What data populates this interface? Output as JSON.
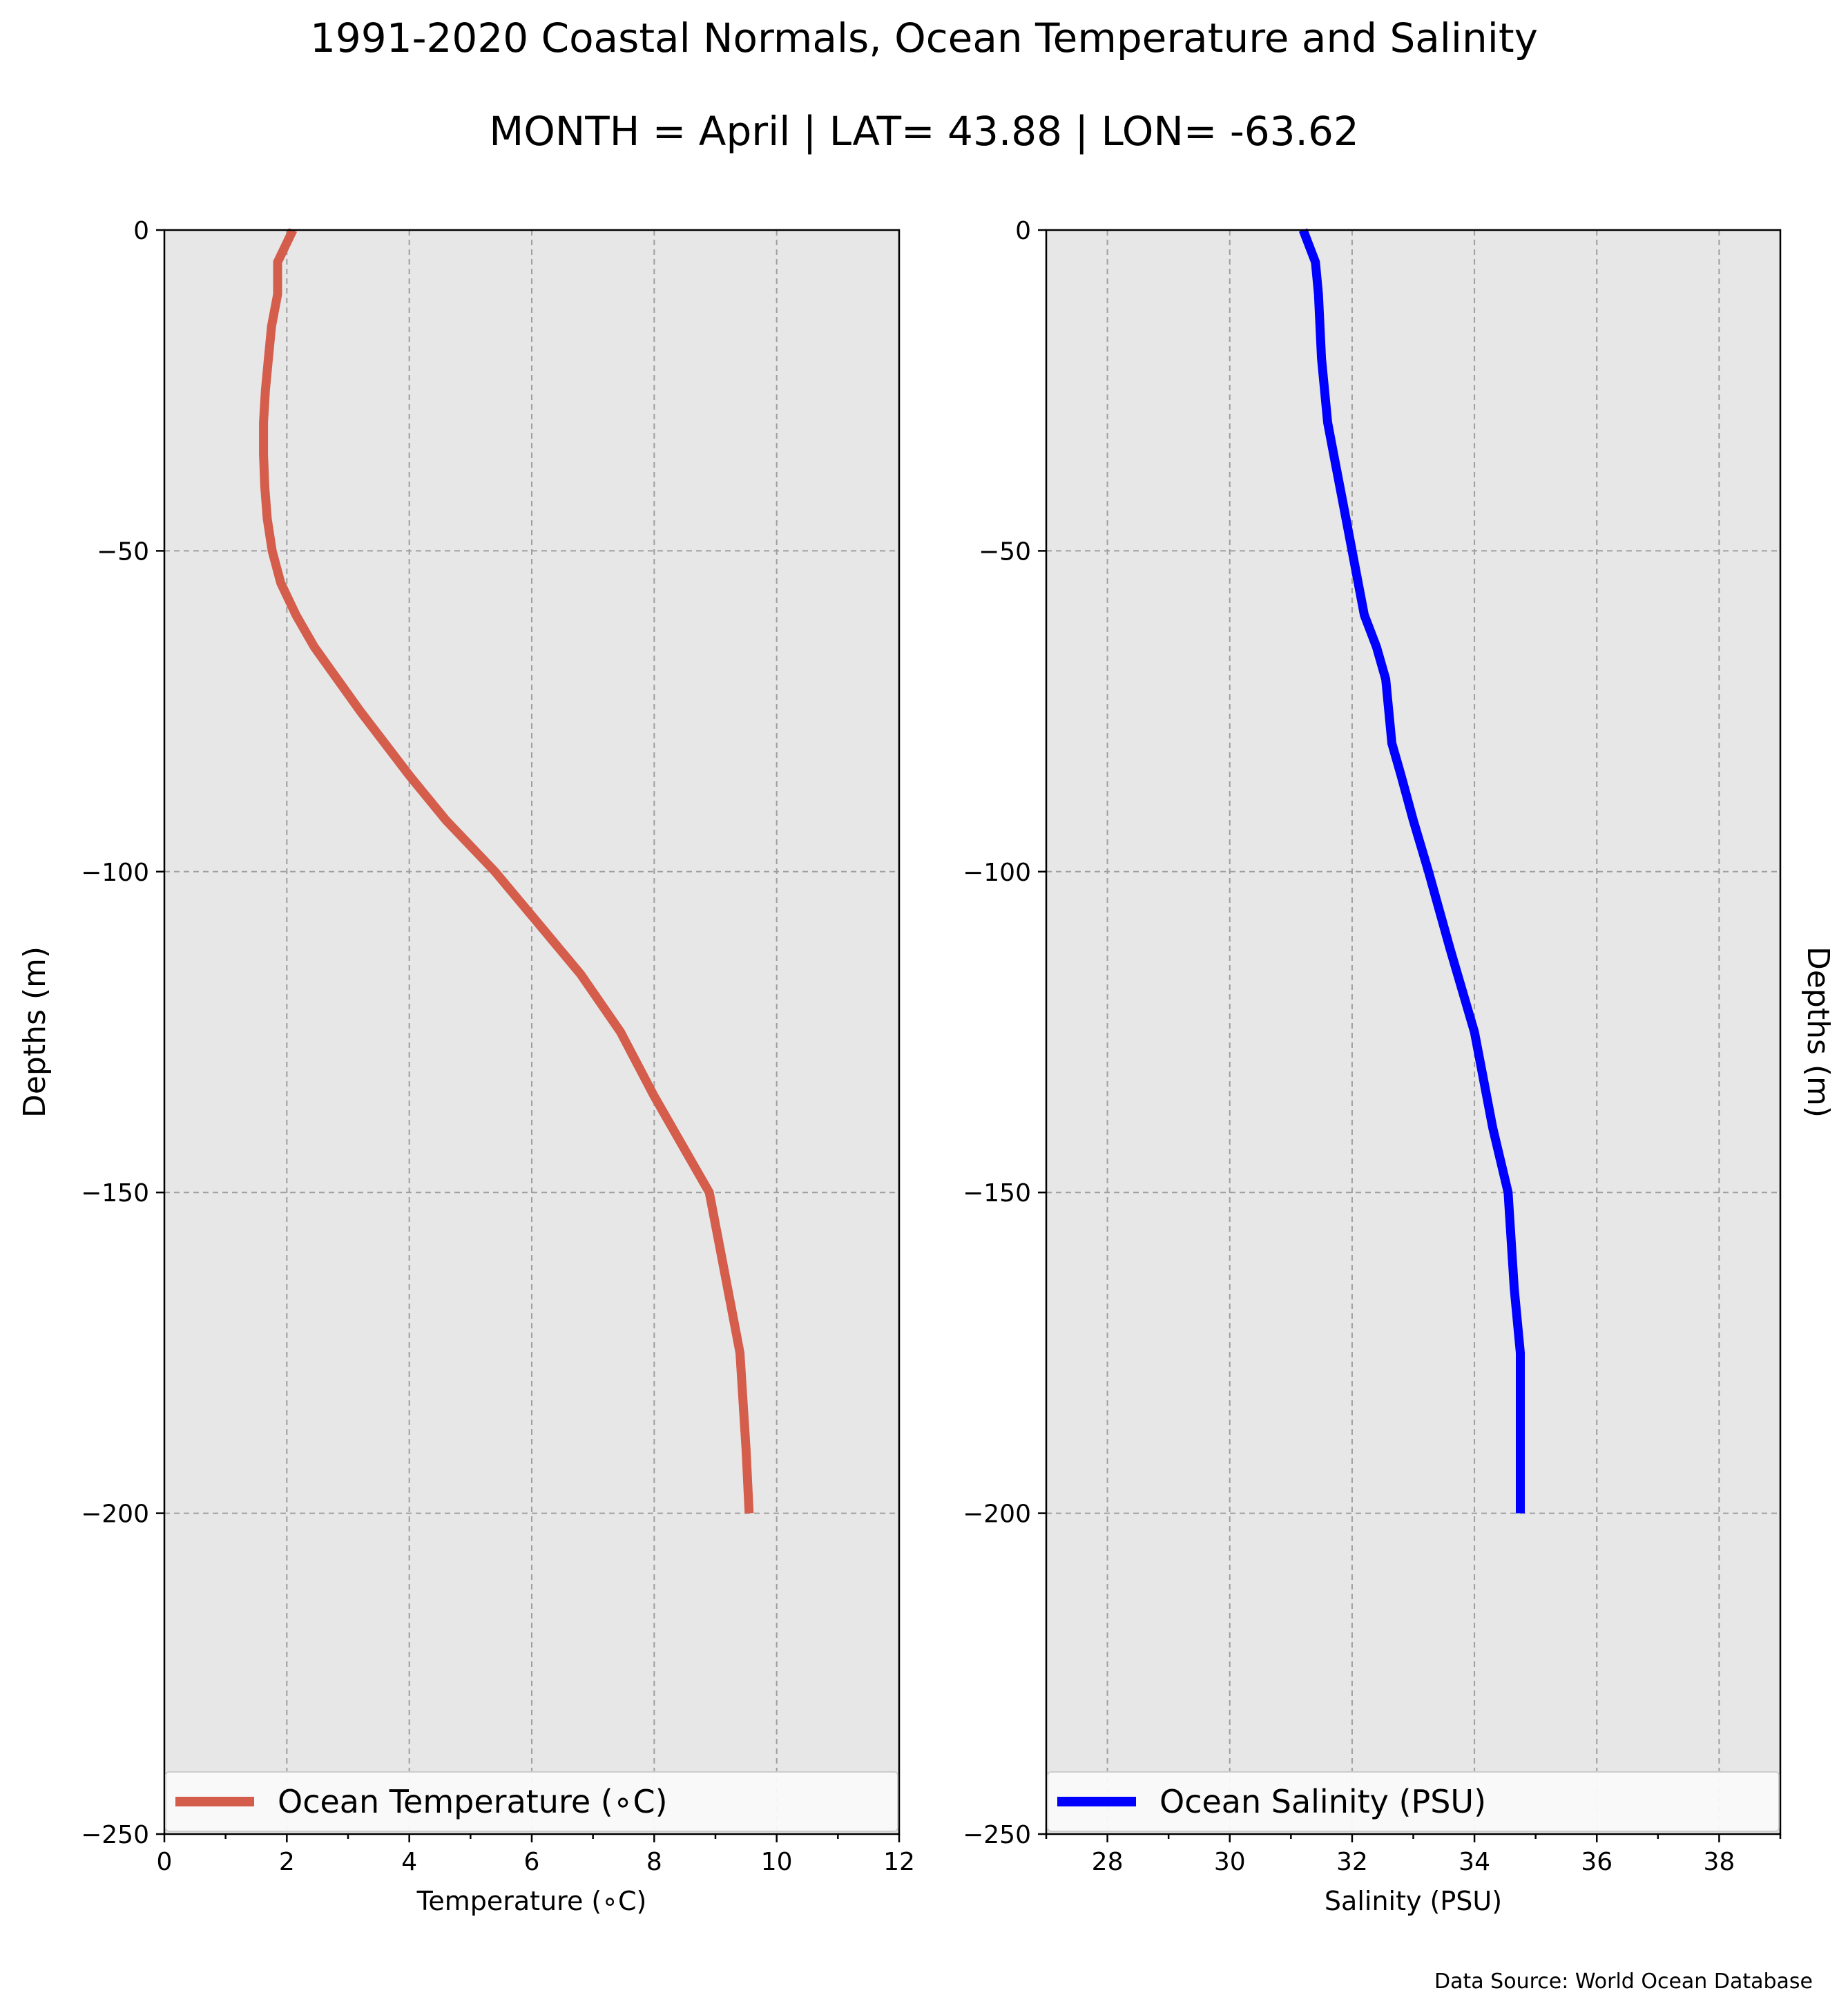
{
  "title": "1991-2020 Coastal Normals, Ocean Temperature and Salinity",
  "subtitle": "MONTH = April | LAT= 43.88 | LON= -63.62",
  "footnote": "Data Source: World Ocean Database",
  "colors": {
    "plot_background": "#e7e7e7",
    "temperature": "#d45d4c",
    "salinity": "#0000ff"
  },
  "chart_data": [
    {
      "type": "line",
      "xlabel": "Temperature ($^\\circ$C)",
      "xlabel_display": "Temperature (∘C)",
      "ylabel": "Depths (m)",
      "xlim": [
        0,
        12
      ],
      "ylim": [
        -250,
        0
      ],
      "x_ticks": [
        0,
        2,
        4,
        6,
        8,
        10,
        12
      ],
      "x_tick_labels": [
        "0",
        "2",
        "4",
        "6",
        "8",
        "10",
        "12"
      ],
      "y_ticks": [
        0,
        -50,
        -100,
        -150,
        -200,
        -250
      ],
      "y_tick_labels": [
        "0",
        "−50",
        "−100",
        "−150",
        "−200",
        "−250"
      ],
      "grid": true,
      "legend_position": "lower-center",
      "series": [
        {
          "name": "Ocean Temperature (∘C)",
          "color": "#d45d4c",
          "points": [
            {
              "x": 2.1,
              "y": 0
            },
            {
              "x": 1.85,
              "y": -5
            },
            {
              "x": 1.85,
              "y": -10
            },
            {
              "x": 1.75,
              "y": -15
            },
            {
              "x": 1.7,
              "y": -20
            },
            {
              "x": 1.65,
              "y": -25
            },
            {
              "x": 1.62,
              "y": -30
            },
            {
              "x": 1.62,
              "y": -35
            },
            {
              "x": 1.64,
              "y": -40
            },
            {
              "x": 1.68,
              "y": -45
            },
            {
              "x": 1.76,
              "y": -50
            },
            {
              "x": 1.9,
              "y": -55
            },
            {
              "x": 2.15,
              "y": -60
            },
            {
              "x": 2.45,
              "y": -65
            },
            {
              "x": 3.2,
              "y": -75
            },
            {
              "x": 3.6,
              "y": -80
            },
            {
              "x": 4.0,
              "y": -85
            },
            {
              "x": 4.6,
              "y": -92
            },
            {
              "x": 5.4,
              "y": -100
            },
            {
              "x": 6.1,
              "y": -108
            },
            {
              "x": 6.8,
              "y": -116
            },
            {
              "x": 7.45,
              "y": -125
            },
            {
              "x": 8.0,
              "y": -135
            },
            {
              "x": 8.9,
              "y": -150
            },
            {
              "x": 9.1,
              "y": -160
            },
            {
              "x": 9.4,
              "y": -175
            },
            {
              "x": 9.5,
              "y": -190
            },
            {
              "x": 9.55,
              "y": -200
            }
          ]
        }
      ]
    },
    {
      "type": "line",
      "xlabel": "Salinity (PSU)",
      "ylabel": "Depths (m)",
      "xlim": [
        27,
        39
      ],
      "ylim": [
        -250,
        0
      ],
      "x_ticks": [
        28,
        30,
        32,
        34,
        36,
        38
      ],
      "x_tick_labels": [
        "28",
        "30",
        "32",
        "34",
        "36",
        "38"
      ],
      "y_ticks": [
        0,
        -50,
        -100,
        -150,
        -200,
        -250
      ],
      "y_tick_labels": [
        "0",
        "−50",
        "−100",
        "−150",
        "−200",
        "−250"
      ],
      "grid": true,
      "legend_position": "lower-center",
      "series": [
        {
          "name": "Ocean Salinity (PSU)",
          "color": "#0000ff",
          "points": [
            {
              "x": 31.2,
              "y": 0
            },
            {
              "x": 31.4,
              "y": -5
            },
            {
              "x": 31.45,
              "y": -10
            },
            {
              "x": 31.5,
              "y": -20
            },
            {
              "x": 31.6,
              "y": -30
            },
            {
              "x": 31.7,
              "y": -35
            },
            {
              "x": 31.9,
              "y": -45
            },
            {
              "x": 32.0,
              "y": -50
            },
            {
              "x": 32.2,
              "y": -60
            },
            {
              "x": 32.4,
              "y": -65
            },
            {
              "x": 32.55,
              "y": -70
            },
            {
              "x": 32.65,
              "y": -80
            },
            {
              "x": 32.8,
              "y": -85
            },
            {
              "x": 33.0,
              "y": -92
            },
            {
              "x": 33.25,
              "y": -100
            },
            {
              "x": 33.6,
              "y": -112
            },
            {
              "x": 34.0,
              "y": -125
            },
            {
              "x": 34.3,
              "y": -140
            },
            {
              "x": 34.55,
              "y": -150
            },
            {
              "x": 34.65,
              "y": -165
            },
            {
              "x": 34.75,
              "y": -175
            },
            {
              "x": 34.75,
              "y": -185
            },
            {
              "x": 34.75,
              "y": -200
            }
          ]
        }
      ]
    }
  ]
}
